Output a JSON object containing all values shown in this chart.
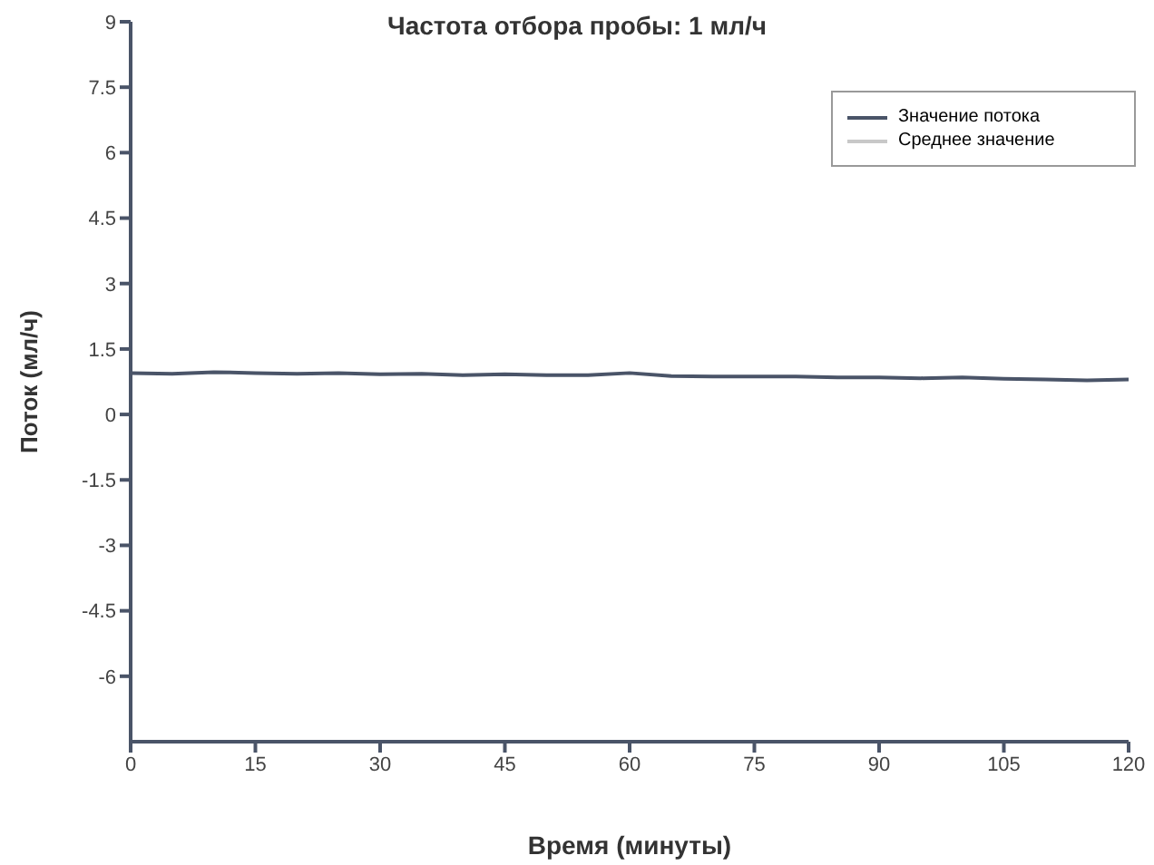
{
  "chart_data": {
    "type": "line",
    "title": "Частота отбора пробы: 1 мл/ч",
    "xlabel": "Время (минуты)",
    "ylabel": "Поток (мл/ч)",
    "x": [
      0,
      5,
      10,
      15,
      20,
      25,
      30,
      35,
      40,
      45,
      50,
      55,
      60,
      65,
      70,
      75,
      80,
      85,
      90,
      95,
      100,
      105,
      110,
      115,
      120
    ],
    "series": [
      {
        "name": "Значение потока",
        "color": "#4a5468",
        "values": [
          0.95,
          0.93,
          0.97,
          0.95,
          0.93,
          0.95,
          0.92,
          0.93,
          0.9,
          0.92,
          0.9,
          0.9,
          0.95,
          0.88,
          0.87,
          0.87,
          0.87,
          0.85,
          0.85,
          0.83,
          0.85,
          0.82,
          0.8,
          0.78,
          0.8
        ]
      },
      {
        "name": "Среднее значение",
        "color": "#c8c8c8",
        "values": [
          null,
          null,
          null,
          null,
          null,
          null,
          null,
          null,
          null,
          null,
          null,
          null,
          null,
          null,
          null,
          null,
          null,
          null,
          null,
          null,
          null,
          null,
          null,
          null,
          null
        ]
      }
    ],
    "xlim": [
      0,
      120
    ],
    "xticks": [
      0,
      15,
      30,
      45,
      60,
      75,
      90,
      105,
      120
    ],
    "ylim": [
      -7.5,
      9
    ],
    "yticks": [
      -6,
      -4.5,
      -3,
      -1.5,
      0,
      1.5,
      3,
      4.5,
      6,
      7.5,
      9
    ],
    "grid": false,
    "legend": "top right",
    "marker": "none",
    "line_style": "solid"
  }
}
